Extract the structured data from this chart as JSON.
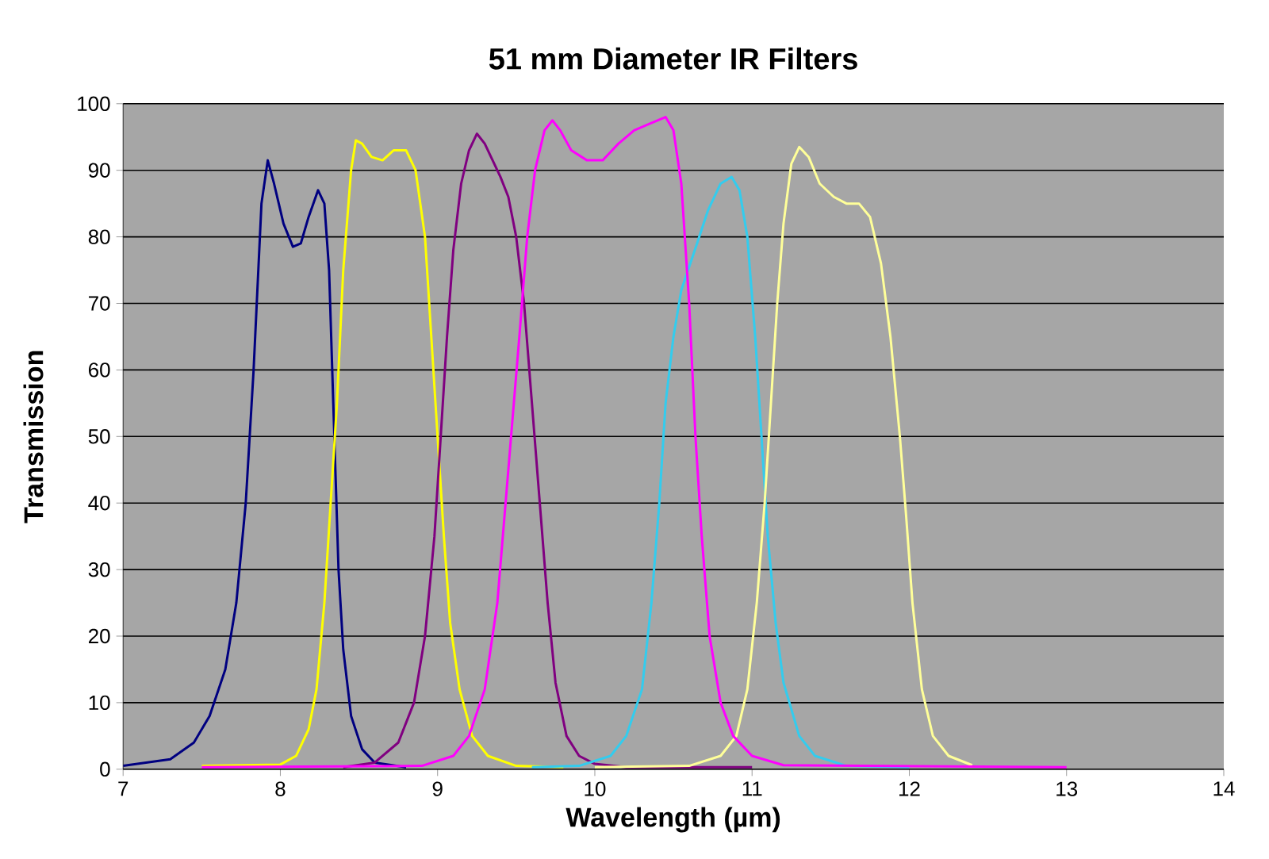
{
  "chart_data": {
    "type": "line",
    "title": "51 mm Diameter IR Filters",
    "xlabel": "Wavelength (µm)",
    "ylabel": "Transmission",
    "xlim": [
      7,
      14
    ],
    "xticks": [
      7,
      8,
      9,
      10,
      11,
      12,
      13,
      14
    ],
    "ylim": [
      0,
      100
    ],
    "yticks": [
      0,
      10,
      20,
      30,
      40,
      50,
      60,
      70,
      80,
      90,
      100
    ],
    "grid": "y",
    "marker": "none",
    "line_style": "solid",
    "series": [
      {
        "color": "#000080",
        "x": [
          7.0,
          7.3,
          7.45,
          7.55,
          7.65,
          7.72,
          7.78,
          7.83,
          7.86,
          7.88,
          7.92,
          7.96,
          8.02,
          8.08,
          8.13,
          8.18,
          8.24,
          8.28,
          8.31,
          8.33,
          8.35,
          8.37,
          8.4,
          8.45,
          8.52,
          8.6,
          8.8
        ],
        "values": [
          0.5,
          1.5,
          4,
          8,
          15,
          25,
          40,
          60,
          75,
          85,
          91.5,
          88,
          82,
          78.5,
          79,
          83,
          87,
          85,
          75,
          60,
          45,
          30,
          18,
          8,
          3,
          1,
          0.3
        ]
      },
      {
        "color": "#ffff00",
        "x": [
          7.5,
          8.0,
          8.1,
          8.18,
          8.23,
          8.28,
          8.32,
          8.36,
          8.4,
          8.45,
          8.48,
          8.52,
          8.58,
          8.65,
          8.72,
          8.8,
          8.86,
          8.92,
          8.96,
          9.0,
          9.04,
          9.08,
          9.14,
          9.22,
          9.32,
          9.5,
          9.8
        ],
        "values": [
          0.5,
          0.7,
          2,
          6,
          12,
          25,
          40,
          55,
          75,
          90,
          94.5,
          94,
          92,
          91.5,
          93,
          93,
          90,
          80,
          65,
          50,
          35,
          22,
          12,
          5,
          2,
          0.5,
          0.3
        ]
      },
      {
        "color": "#800080",
        "x": [
          8.4,
          8.6,
          8.75,
          8.85,
          8.92,
          8.98,
          9.02,
          9.06,
          9.1,
          9.15,
          9.2,
          9.25,
          9.3,
          9.4,
          9.45,
          9.5,
          9.55,
          9.6,
          9.65,
          9.7,
          9.75,
          9.82,
          9.9,
          10.0,
          10.2,
          11.0
        ],
        "values": [
          0.3,
          1,
          4,
          10,
          20,
          35,
          50,
          65,
          78,
          88,
          93,
          95.5,
          94,
          89,
          86,
          80,
          70,
          55,
          40,
          25,
          13,
          5,
          2,
          0.8,
          0.3,
          0.3
        ]
      },
      {
        "color": "#33ccee",
        "x": [
          9.6,
          9.9,
          10.1,
          10.2,
          10.3,
          10.36,
          10.41,
          10.45,
          10.5,
          10.55,
          10.65,
          10.72,
          10.8,
          10.87,
          10.92,
          10.97,
          11.02,
          11.06,
          11.1,
          11.15,
          11.2,
          11.3,
          11.4,
          11.6,
          12.0
        ],
        "values": [
          0.3,
          0.5,
          2,
          5,
          12,
          25,
          40,
          55,
          65,
          72,
          79,
          84,
          88,
          89,
          87,
          80,
          65,
          50,
          35,
          22,
          13,
          5,
          2,
          0.5,
          0.3
        ]
      },
      {
        "color": "#ffff99",
        "x": [
          10.0,
          10.6,
          10.8,
          10.9,
          10.97,
          11.03,
          11.08,
          11.12,
          11.16,
          11.2,
          11.25,
          11.3,
          11.36,
          11.43,
          11.52,
          11.6,
          11.68,
          11.75,
          11.82,
          11.88,
          11.94,
          11.98,
          12.02,
          12.08,
          12.15,
          12.25,
          12.4
        ],
        "values": [
          0.3,
          0.5,
          2,
          5,
          12,
          25,
          40,
          55,
          70,
          82,
          91,
          93.5,
          92,
          88,
          86,
          85,
          85,
          83,
          76,
          65,
          50,
          38,
          25,
          12,
          5,
          2,
          0.6
        ]
      },
      {
        "color": "#ff00ff",
        "x": [
          7.5,
          8.9,
          9.1,
          9.2,
          9.3,
          9.38,
          9.45,
          9.52,
          9.57,
          9.62,
          9.68,
          9.73,
          9.78,
          9.85,
          9.95,
          10.05,
          10.15,
          10.25,
          10.35,
          10.45,
          10.5,
          10.55,
          10.6,
          10.64,
          10.68,
          10.73,
          10.8,
          10.88,
          11.0,
          11.2,
          13.0
        ],
        "values": [
          0.3,
          0.5,
          2,
          5,
          12,
          25,
          45,
          65,
          80,
          90,
          96,
          97.5,
          96,
          93,
          91.5,
          91.5,
          94,
          96,
          97,
          98,
          96,
          88,
          70,
          50,
          35,
          20,
          10,
          5,
          2,
          0.6,
          0.3
        ]
      }
    ]
  }
}
